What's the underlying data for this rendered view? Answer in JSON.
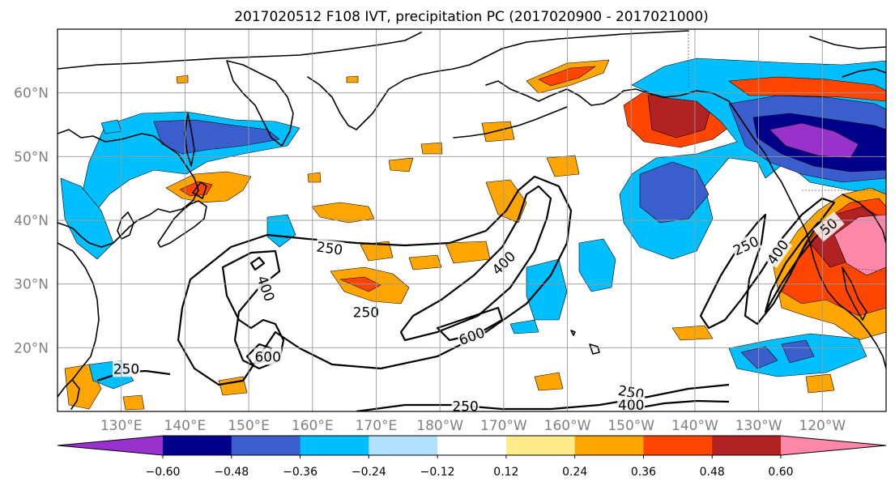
{
  "title": "2017020512 F108 IVT, precipitation PC (2017020900 - 2017021000)",
  "lat_labels": [
    "60°N",
    "50°N",
    "40°N",
    "30°N",
    "20°N"
  ],
  "lat_values": [
    60,
    50,
    40,
    30,
    20
  ],
  "lon_labels": [
    "130°E",
    "140°E",
    "150°E",
    "160°E",
    "170°E",
    "180°W",
    "170°W",
    "160°W",
    "150°W",
    "140°W",
    "130°W",
    "120°W"
  ],
  "lon_values": [
    130,
    140,
    150,
    160,
    170,
    180,
    190,
    200,
    210,
    220,
    230,
    240
  ],
  "map_extent": {
    "lon_min": 120,
    "lon_max": 250,
    "lat_min": 10,
    "lat_max": 70
  },
  "colorbar": {
    "colors": [
      "#9932cc",
      "#00008b",
      "#3a5fcd",
      "#00bfff",
      "#b0e2ff",
      "#ffffff",
      "#ffeb8a",
      "#ffa500",
      "#ff4500",
      "#b22222",
      "#ff88aa"
    ],
    "tick_labels": [
      "−0.60",
      "−0.48",
      "−0.36",
      "−0.24",
      "−0.12",
      "0.12",
      "0.24",
      "0.36",
      "0.48",
      "0.60"
    ]
  },
  "contour_labels": [
    {
      "text": "250",
      "lon": 162.7,
      "lat": 35.6,
      "rot": 8
    },
    {
      "text": "250",
      "lon": 168.4,
      "lat": 25.6,
      "rot": 0
    },
    {
      "text": "400",
      "lon": 152.7,
      "lat": 29.3,
      "rot": 70
    },
    {
      "text": "600",
      "lon": 153.0,
      "lat": 18.6,
      "rot": 0
    },
    {
      "text": "400",
      "lon": 190.0,
      "lat": 33.3,
      "rot": -45
    },
    {
      "text": "600",
      "lon": 185.0,
      "lat": 21.8,
      "rot": -20
    },
    {
      "text": "250",
      "lon": 130.8,
      "lat": 16.7,
      "rot": 0
    },
    {
      "text": "250",
      "lon": 184.0,
      "lat": 10.8,
      "rot": 0
    },
    {
      "text": "250",
      "lon": 210.0,
      "lat": 13.0,
      "rot": 10
    },
    {
      "text": "400",
      "lon": 210.0,
      "lat": 11.0,
      "rot": 0
    },
    {
      "text": "250",
      "lon": 228.0,
      "lat": 36.0,
      "rot": -25
    },
    {
      "text": "400",
      "lon": 233.0,
      "lat": 35.0,
      "rot": -55
    },
    {
      "text": "50",
      "lon": 241.0,
      "lat": 39.0,
      "rot": -40
    }
  ]
}
